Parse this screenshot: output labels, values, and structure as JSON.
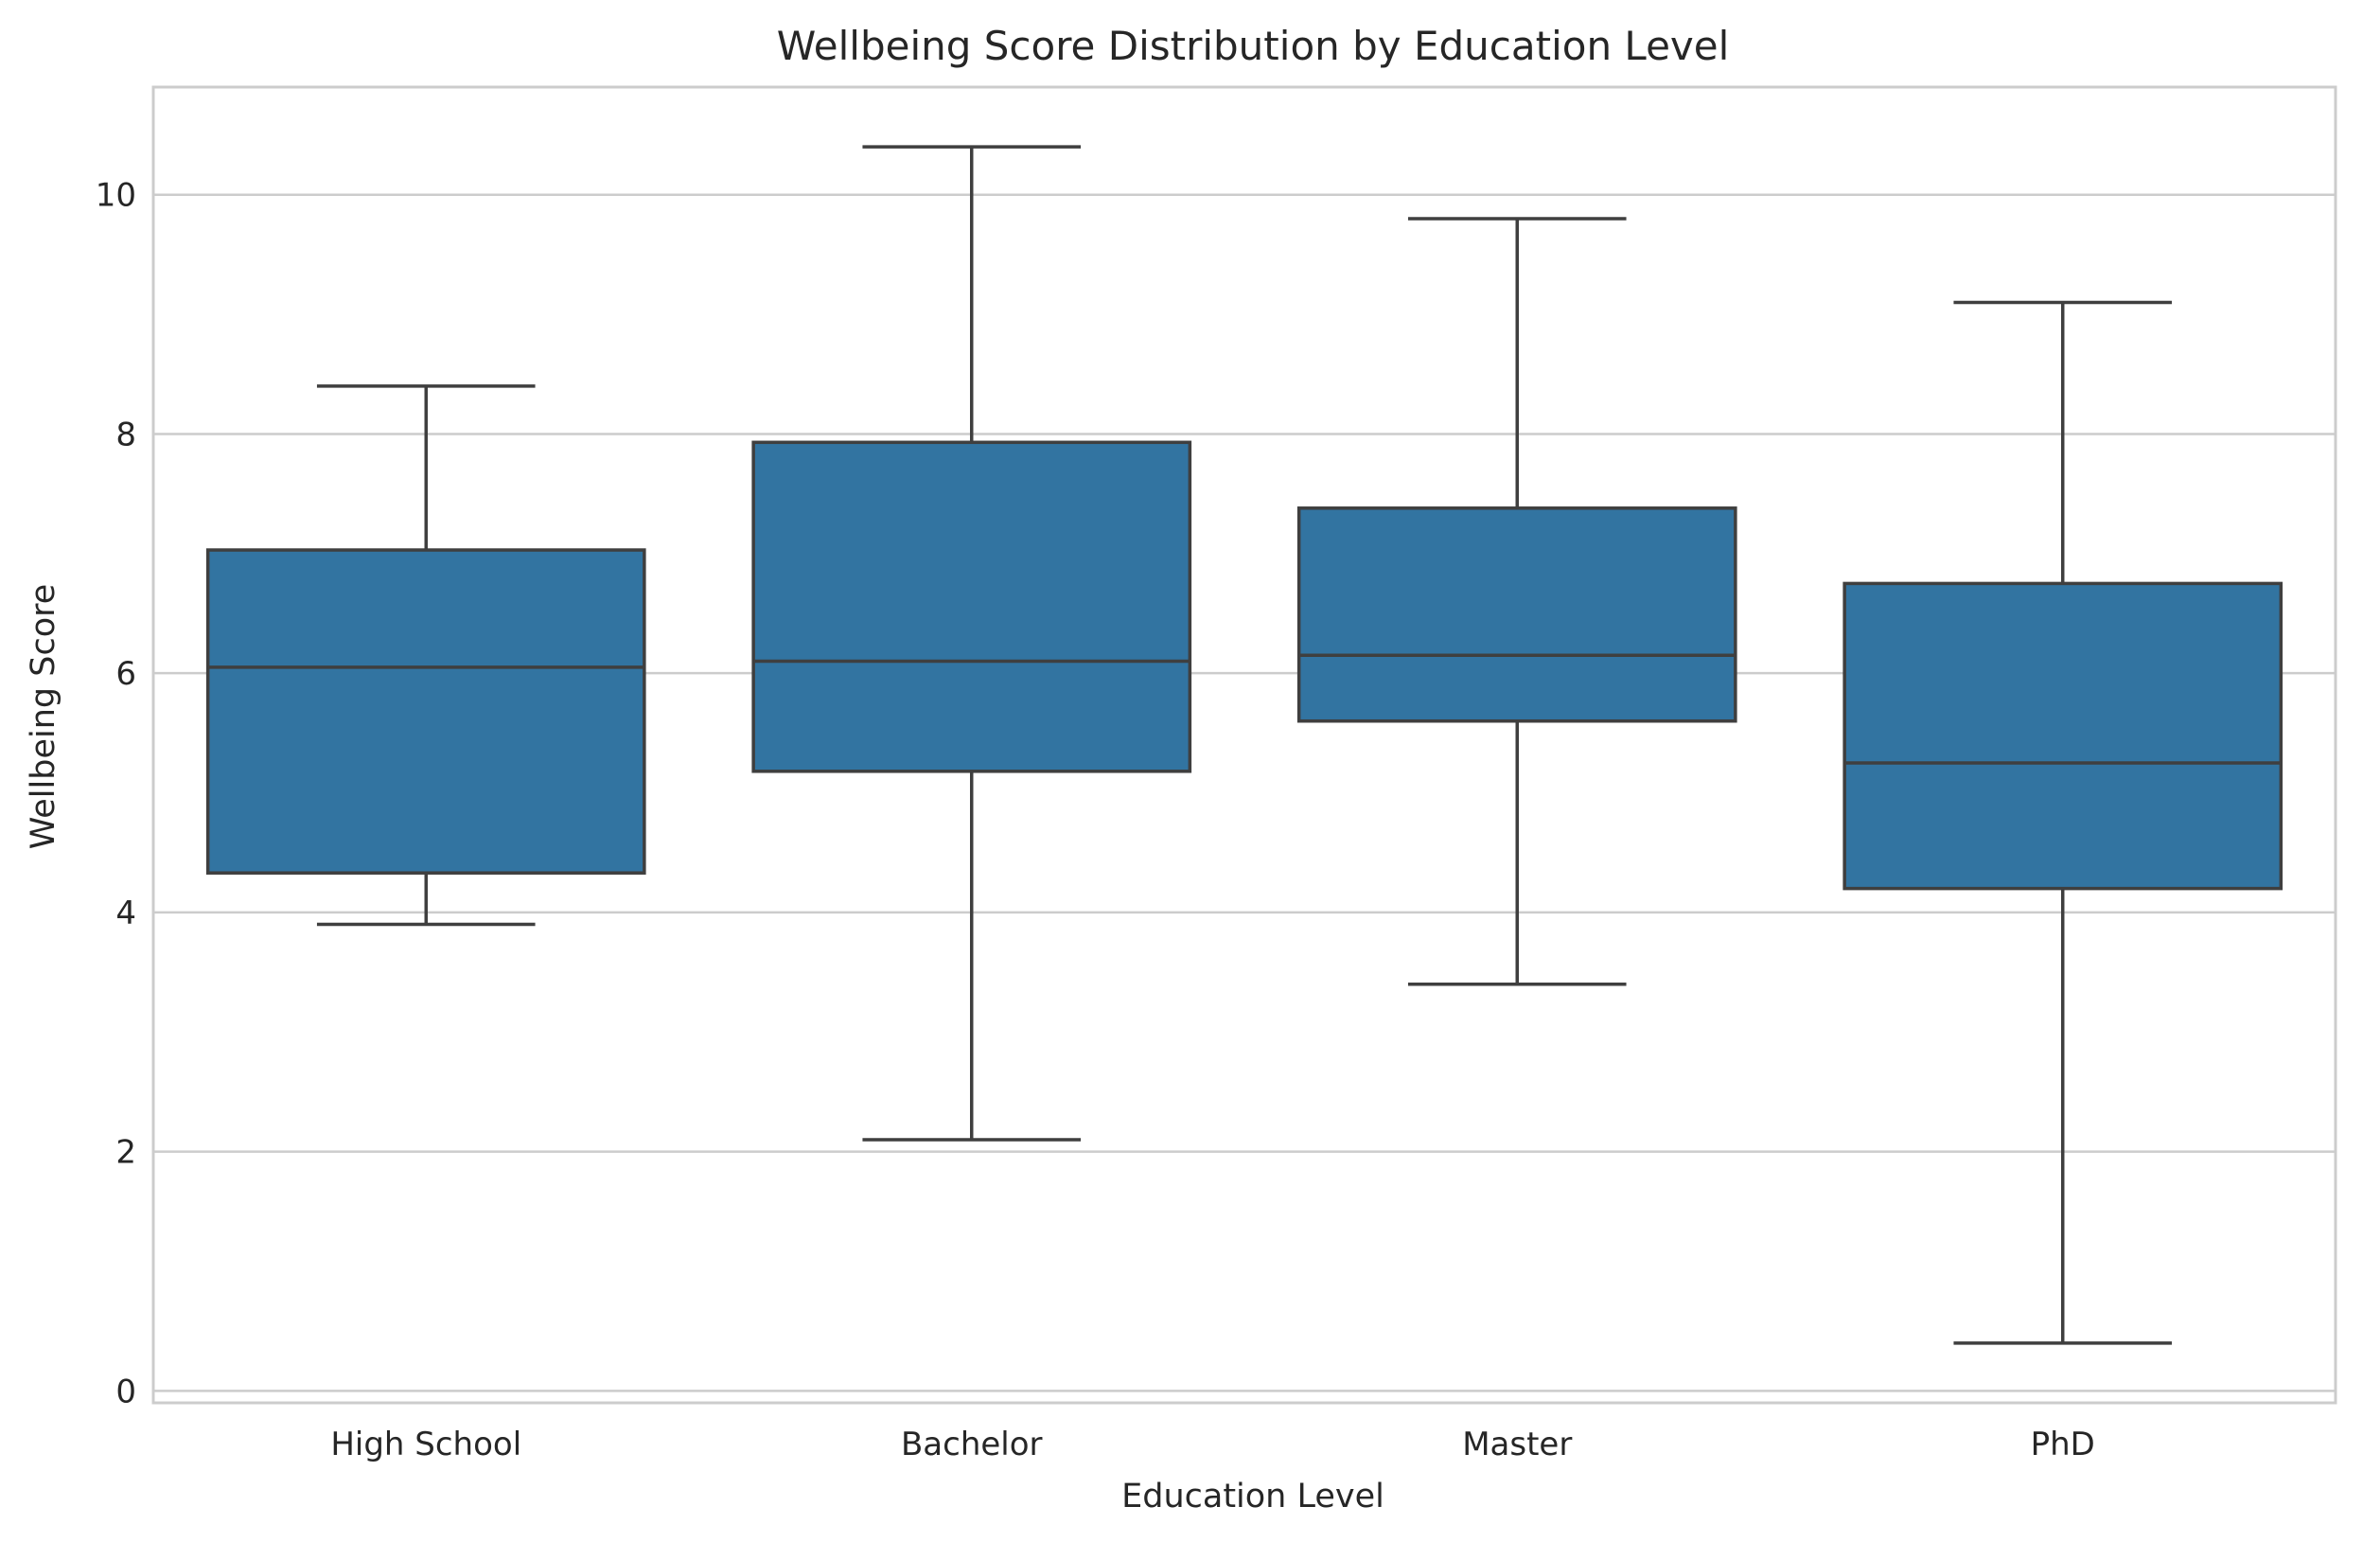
{
  "chart_data": {
    "type": "box",
    "title": "Wellbeing Score Distribution by Education Level",
    "xlabel": "Education Level",
    "ylabel": "Wellbeing Score",
    "ylim": [
      -0.1,
      10.9
    ],
    "yticks": [
      0,
      2,
      4,
      6,
      8,
      10
    ],
    "grid": true,
    "box_color": "#3274a1",
    "line_color": "#3f3f3f",
    "grid_color": "#cccccc",
    "categories": [
      "High School",
      "Bachelor",
      "Master",
      "PhD"
    ],
    "boxes": [
      {
        "category": "High School",
        "whisker_low": 3.9,
        "q1": 4.33,
        "median": 6.05,
        "q3": 7.03,
        "whisker_high": 8.4
      },
      {
        "category": "Bachelor",
        "whisker_low": 2.1,
        "q1": 5.18,
        "median": 6.1,
        "q3": 7.93,
        "whisker_high": 10.4
      },
      {
        "category": "Master",
        "whisker_low": 3.4,
        "q1": 5.6,
        "median": 6.15,
        "q3": 7.38,
        "whisker_high": 9.8
      },
      {
        "category": "PhD",
        "whisker_low": 0.4,
        "q1": 4.2,
        "median": 5.25,
        "q3": 6.75,
        "whisker_high": 9.1
      }
    ]
  }
}
